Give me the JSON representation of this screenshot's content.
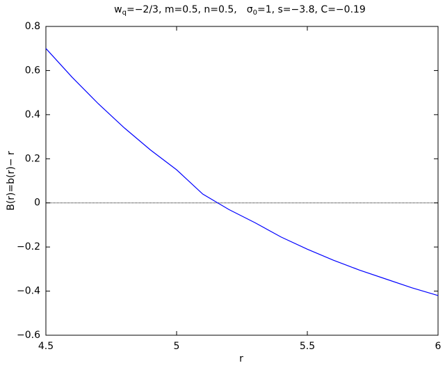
{
  "chart_data": {
    "type": "line",
    "title_parts": [
      "w",
      "q",
      "=−2/3, m=0.5, n=0.5,",
      "σ",
      "0",
      "=1, s=−3.8, C=−0.19"
    ],
    "x_label": "r",
    "y_label": "B(r)=b(r)− r",
    "x": [
      4.5,
      4.6,
      4.7,
      4.8,
      4.9,
      5.0,
      5.1,
      5.2,
      5.3,
      5.4,
      5.5,
      5.6,
      5.7,
      5.8,
      5.9,
      6.0
    ],
    "series": [
      {
        "color": "#0000ff",
        "values": [
          0.7,
          0.57,
          0.45,
          0.34,
          0.24,
          0.15,
          0.04,
          -0.03,
          -0.09,
          -0.155,
          -0.21,
          -0.26,
          -0.305,
          -0.345,
          -0.385,
          -0.42
        ]
      }
    ],
    "reference_line": 0,
    "xlim": [
      4.5,
      6
    ],
    "xticks": [
      4.5,
      5,
      5.5,
      6
    ],
    "ylim": [
      -0.6,
      0.8
    ],
    "yticks": [
      {
        "value": -0.6,
        "label": "−0.6"
      },
      {
        "value": -0.4,
        "label": "−0.4"
      },
      {
        "value": -0.2,
        "label": "−0.2"
      },
      0,
      0.2,
      0.4,
      0.6,
      0.8
    ],
    "grid": false
  }
}
